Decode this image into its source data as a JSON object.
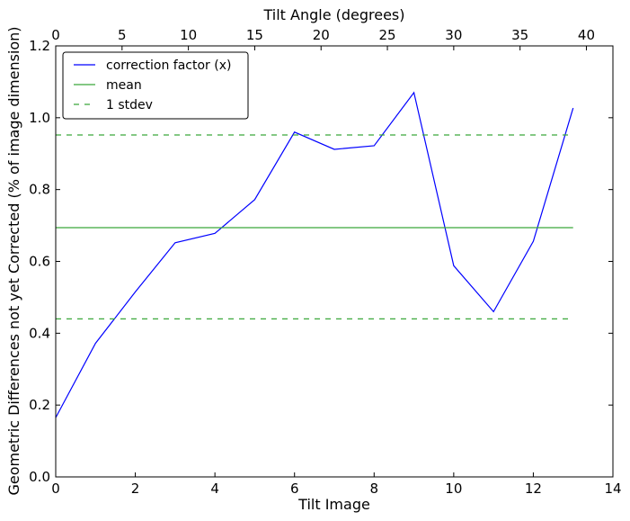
{
  "chart_data": {
    "type": "line",
    "title": "",
    "xlabel": "Tilt Image",
    "ylabel": "Geometric Differences not yet Corrected (% of image dimension)",
    "top_xlabel": "Tilt Angle (degrees)",
    "xlim": [
      0,
      14
    ],
    "ylim": [
      0.0,
      1.2
    ],
    "top_xlim": [
      0,
      42
    ],
    "xticks": [
      "0",
      "2",
      "4",
      "6",
      "8",
      "10",
      "12",
      "14"
    ],
    "yticks": [
      "0.0",
      "0.2",
      "0.4",
      "0.6",
      "0.8",
      "1.0",
      "1.2"
    ],
    "top_xticks": [
      "0",
      "5",
      "10",
      "15",
      "20",
      "25",
      "30",
      "35",
      "40"
    ],
    "grid": false,
    "legend_position": "top-left",
    "series": [
      {
        "name": "correction factor (x)",
        "color": "#0000ff",
        "style": "solid",
        "x": [
          0,
          1,
          2,
          3,
          4,
          5,
          6,
          7,
          8,
          9,
          10,
          11,
          12,
          13
        ],
        "y": [
          0.165,
          0.372,
          0.515,
          0.652,
          0.678,
          0.772,
          0.96,
          0.912,
          0.922,
          1.07,
          0.588,
          0.46,
          0.656,
          1.027
        ]
      },
      {
        "name": "mean",
        "color": "#3aa83a",
        "style": "solid",
        "x": [
          0,
          13
        ],
        "y": [
          0.694,
          0.694
        ]
      },
      {
        "name": "1 stdev",
        "color": "#3aa83a",
        "style": "dashed",
        "x": [
          0,
          13
        ],
        "y": [
          0.952,
          0.952
        ]
      },
      {
        "name": "",
        "color": "#3aa83a",
        "style": "dashed",
        "x": [
          0,
          13
        ],
        "y": [
          0.44,
          0.44
        ]
      }
    ]
  }
}
